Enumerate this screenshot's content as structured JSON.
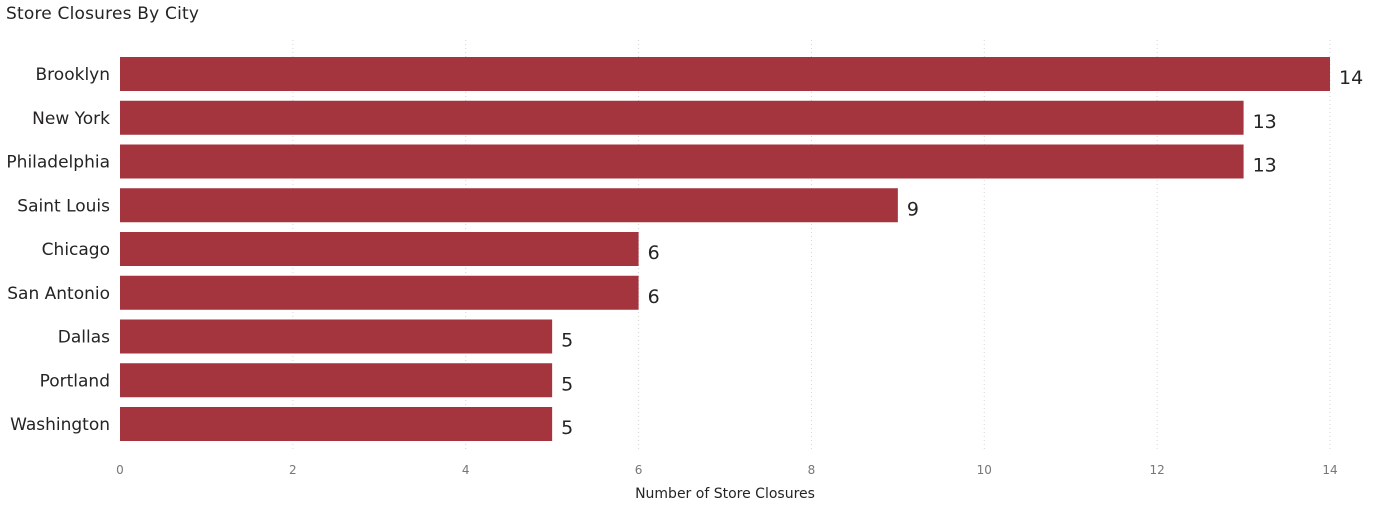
{
  "chart_data": {
    "type": "bar",
    "orientation": "horizontal",
    "title": "Store Closures By City",
    "xlabel": "Number of Store Closures",
    "ylabel": "",
    "categories": [
      "Brooklyn",
      "New York",
      "Philadelphia",
      "Saint Louis",
      "Chicago",
      "San Antonio",
      "Dallas",
      "Portland",
      "Washington"
    ],
    "values": [
      14,
      13,
      13,
      9,
      6,
      6,
      5,
      5,
      5
    ],
    "xlim": [
      0,
      14
    ],
    "xticks": [
      0,
      2,
      4,
      6,
      8,
      10,
      12,
      14
    ],
    "grid": true,
    "legend": "none",
    "bar_color": "#A4343E"
  }
}
